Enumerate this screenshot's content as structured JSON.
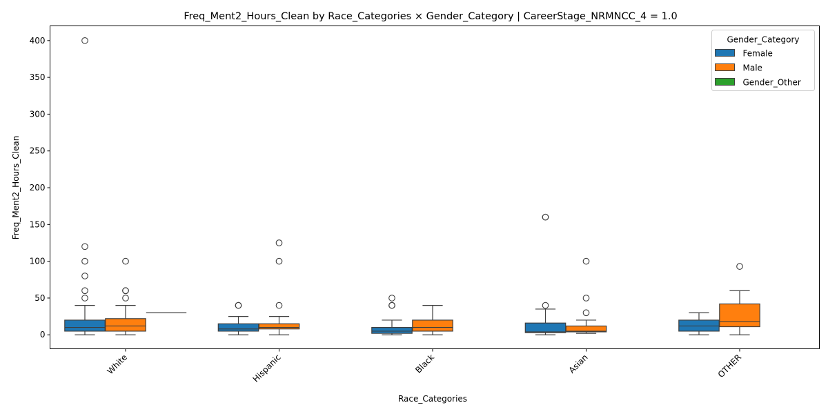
{
  "chart_data": {
    "type": "boxplot",
    "title": "Freq_Ment2_Hours_Clean by Race_Categories × Gender_Category | CareerStage_NRMNCC_4 = 1.0",
    "xlabel": "Race_Categories",
    "ylabel": "Freq_Ment2_Hours_Clean",
    "categories": [
      "White",
      "Hispanic",
      "Black",
      "Asian",
      "OTHER"
    ],
    "ylim": [
      -19,
      420
    ],
    "yticks": [
      0,
      50,
      100,
      150,
      200,
      250,
      300,
      350,
      400
    ],
    "grid": false,
    "legend": {
      "title": "Gender_Category",
      "placement": "top-right"
    },
    "series": [
      {
        "name": "Female",
        "color": "#1f77b4",
        "boxes": [
          {
            "category": "White",
            "min": 0,
            "q1": 5,
            "median": 10,
            "q3": 20,
            "max": 40,
            "outliers": [
              50,
              60,
              80,
              100,
              120,
              400
            ]
          },
          {
            "category": "Hispanic",
            "min": 0,
            "q1": 5,
            "median": 8,
            "q3": 15,
            "max": 25,
            "outliers": [
              40,
              40
            ]
          },
          {
            "category": "Black",
            "min": 0,
            "q1": 2,
            "median": 5,
            "q3": 10,
            "max": 20,
            "outliers": [
              40,
              40,
              50
            ]
          },
          {
            "category": "Asian",
            "min": 0,
            "q1": 3,
            "median": 4,
            "q3": 16,
            "max": 35,
            "outliers": [
              40,
              160,
              160
            ]
          },
          {
            "category": "OTHER",
            "min": 0,
            "q1": 5,
            "median": 12,
            "q3": 20,
            "max": 30,
            "outliers": []
          }
        ]
      },
      {
        "name": "Male",
        "color": "#ff7f0e",
        "boxes": [
          {
            "category": "White",
            "min": 0,
            "q1": 5,
            "median": 12,
            "q3": 22,
            "max": 40,
            "outliers": [
              50,
              60,
              60,
              100
            ]
          },
          {
            "category": "Hispanic",
            "min": 0,
            "q1": 8,
            "median": 10,
            "q3": 15,
            "max": 25,
            "outliers": [
              40,
              100,
              125
            ]
          },
          {
            "category": "Black",
            "min": 0,
            "q1": 5,
            "median": 10,
            "q3": 20,
            "max": 40,
            "outliers": []
          },
          {
            "category": "Asian",
            "min": 2,
            "q1": 4,
            "median": 5,
            "q3": 12,
            "max": 20,
            "outliers": [
              30,
              50,
              100
            ]
          },
          {
            "category": "OTHER",
            "min": 0,
            "q1": 11,
            "median": 18,
            "q3": 42,
            "max": 60,
            "outliers": [
              93
            ]
          }
        ]
      },
      {
        "name": "Gender_Other",
        "color": "#2ca02c",
        "boxes": [
          {
            "category": "White",
            "min": 30,
            "q1": 30,
            "median": 30,
            "q3": 30,
            "max": 30,
            "outliers": []
          }
        ]
      }
    ]
  }
}
